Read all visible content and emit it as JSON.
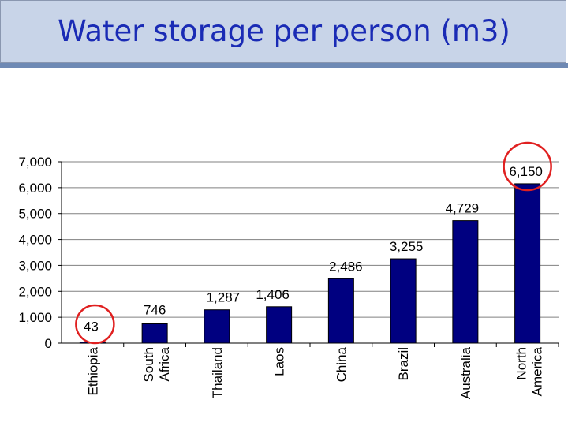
{
  "header": {
    "title": "Water storage per person (m3)"
  },
  "colors": {
    "bar": "#000080",
    "highlight": "#e02020",
    "header_bg": "#c8d4e8",
    "title": "#1a2bb5"
  },
  "chart_data": {
    "type": "bar",
    "title": "Water storage per person (m3)",
    "categories": [
      "Ethiopia",
      "South Africa",
      "Thailand",
      "Laos",
      "China",
      "Brazil",
      "Australia",
      "North America"
    ],
    "category_lines": [
      [
        "Ethiopia"
      ],
      [
        "South",
        "Africa"
      ],
      [
        "Thailand"
      ],
      [
        "Laos"
      ],
      [
        "China"
      ],
      [
        "Brazil"
      ],
      [
        "Australia"
      ],
      [
        "North",
        "America"
      ]
    ],
    "values": [
      43,
      746,
      1287,
      1406,
      2486,
      3255,
      4729,
      6150
    ],
    "value_labels": [
      "43",
      "746",
      "1,287",
      "1,406",
      "2,486",
      "3,255",
      "4,729",
      "6,150"
    ],
    "ylim": [
      0,
      7000
    ],
    "y_ticks": [
      0,
      1000,
      2000,
      3000,
      4000,
      5000,
      6000,
      7000
    ],
    "y_tick_labels": [
      "0",
      "1,000",
      "2,000",
      "3,000",
      "4,000",
      "5,000",
      "6,000",
      "7,000"
    ],
    "grid": true,
    "highlighted": [
      "Ethiopia",
      "North America"
    ],
    "xlabel": "",
    "ylabel": ""
  }
}
